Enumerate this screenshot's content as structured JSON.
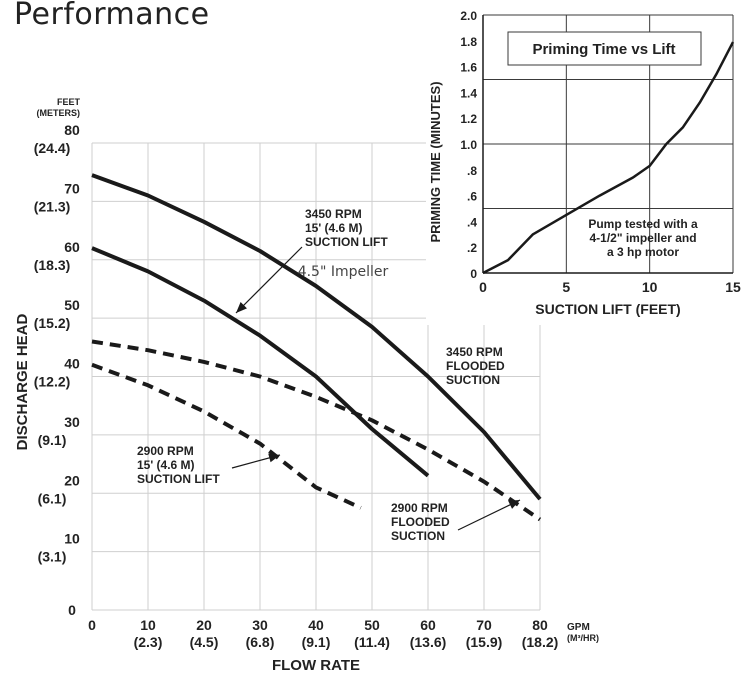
{
  "page": {
    "title": "Performance"
  },
  "chart_data": [
    {
      "type": "line",
      "title": "",
      "xlabel": "FLOW RATE",
      "ylabel": "DISCHARGE HEAD",
      "x_unit": "GPM",
      "x_unit_metric": "(M³/HR)",
      "y_unit": "FEET",
      "y_unit_metric": "(METERS)",
      "xlim": [
        0,
        80
      ],
      "ylim": [
        0,
        80
      ],
      "grid": true,
      "x_ticks": [
        {
          "value": 0,
          "label": "0",
          "metric": ""
        },
        {
          "value": 10,
          "label": "10",
          "metric": "(2.3)"
        },
        {
          "value": 20,
          "label": "20",
          "metric": "(4.5)"
        },
        {
          "value": 30,
          "label": "30",
          "metric": "(6.8)"
        },
        {
          "value": 40,
          "label": "40",
          "metric": "(9.1)"
        },
        {
          "value": 50,
          "label": "50",
          "metric": "(11.4)"
        },
        {
          "value": 60,
          "label": "60",
          "metric": "(13.6)"
        },
        {
          "value": 70,
          "label": "70",
          "metric": "(15.9)"
        },
        {
          "value": 80,
          "label": "80",
          "metric": "(18.2)"
        }
      ],
      "y_ticks": [
        {
          "value": 0,
          "label": "0",
          "metric": ""
        },
        {
          "value": 10,
          "label": "10",
          "metric": "(3.1)"
        },
        {
          "value": 20,
          "label": "20",
          "metric": "(6.1)"
        },
        {
          "value": 30,
          "label": "30",
          "metric": "(9.1)"
        },
        {
          "value": 40,
          "label": "40",
          "metric": "(12.2)"
        },
        {
          "value": 50,
          "label": "50",
          "metric": "(15.2)"
        },
        {
          "value": 60,
          "label": "60",
          "metric": "(18.3)"
        },
        {
          "value": 70,
          "label": "70",
          "metric": "(21.3)"
        },
        {
          "value": 80,
          "label": "80",
          "metric": "(24.4)"
        }
      ],
      "series": [
        {
          "name": "3450 RPM FLOODED SUCTION",
          "style": "solid",
          "x": [
            0,
            10,
            20,
            30,
            40,
            50,
            60,
            70,
            80
          ],
          "y": [
            74.5,
            71,
            66.5,
            61.5,
            55.5,
            48.5,
            40,
            30.5,
            19
          ]
        },
        {
          "name": "3450 RPM 15' (4.6 M) SUCTION LIFT",
          "style": "solid",
          "x": [
            0,
            10,
            20,
            30,
            40,
            50,
            60
          ],
          "y": [
            62,
            58,
            53,
            47,
            40,
            31,
            23
          ]
        },
        {
          "name": "2900 RPM FLOODED SUCTION",
          "style": "dashed",
          "x": [
            0,
            10,
            20,
            30,
            40,
            50,
            60,
            70,
            80
          ],
          "y": [
            46,
            44.5,
            42.5,
            40,
            36.5,
            32.5,
            27.5,
            22,
            15.5
          ]
        },
        {
          "name": "2900 RPM 15' (4.6 M) SUCTION LIFT",
          "style": "dashed",
          "x": [
            0,
            10,
            20,
            30,
            40,
            48
          ],
          "y": [
            42,
            38.5,
            34,
            28.5,
            21,
            17.5
          ]
        }
      ],
      "annotations": {
        "a3450_lift": [
          "3450 RPM",
          "15' (4.6 M)",
          "SUCTION LIFT"
        ],
        "a3450_flooded": [
          "3450 RPM",
          "FLOODED",
          "SUCTION"
        ],
        "a2900_lift": [
          "2900 RPM",
          "15' (4.6 M)",
          "SUCTION LIFT"
        ],
        "a2900_flooded": [
          "2900 RPM",
          "FLOODED",
          "SUCTION"
        ],
        "impeller": "4.5\" Impeller"
      }
    },
    {
      "type": "line",
      "title": "Priming Time vs Lift",
      "xlabel": "SUCTION LIFT (FEET)",
      "ylabel": "PRIMING TIME (MINUTES)",
      "xlim": [
        0,
        15
      ],
      "ylim": [
        0,
        2.0
      ],
      "grid": true,
      "x_ticks": [
        {
          "value": 0,
          "label": "0"
        },
        {
          "value": 5,
          "label": "5"
        },
        {
          "value": 10,
          "label": "10"
        },
        {
          "value": 15,
          "label": "15"
        }
      ],
      "y_ticks": [
        {
          "value": 0,
          "label": "0"
        },
        {
          "value": 0.2,
          "label": ".2"
        },
        {
          "value": 0.4,
          "label": ".4"
        },
        {
          "value": 0.6,
          "label": ".6"
        },
        {
          "value": 0.8,
          "label": ".8"
        },
        {
          "value": 1.0,
          "label": "1.0"
        },
        {
          "value": 1.2,
          "label": "1.2"
        },
        {
          "value": 1.4,
          "label": "1.4"
        },
        {
          "value": 1.6,
          "label": "1.6"
        },
        {
          "value": 1.8,
          "label": "1.8"
        },
        {
          "value": 2.0,
          "label": "2.0"
        }
      ],
      "series": [
        {
          "name": "",
          "style": "solid",
          "x": [
            0,
            1.5,
            3,
            5,
            7,
            9,
            10,
            11,
            12,
            13,
            14,
            15
          ],
          "y": [
            0,
            0.1,
            0.3,
            0.45,
            0.6,
            0.74,
            0.83,
            1.0,
            1.13,
            1.32,
            1.54,
            1.79
          ]
        }
      ],
      "note": [
        "Pump tested with a",
        "4-1/2\" impeller and",
        "a 3 hp motor"
      ]
    }
  ]
}
